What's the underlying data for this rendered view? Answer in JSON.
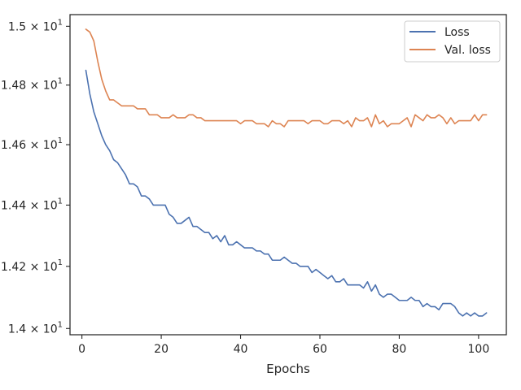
{
  "chart_data": {
    "type": "line",
    "title": "",
    "xlabel": "Epochs",
    "ylabel": "",
    "xlim": [
      -3,
      107
    ],
    "ylim": [
      13.98,
      15.04
    ],
    "y_scale": "log",
    "grid": false,
    "legend_position": "top-right",
    "x_ticks": [
      0,
      20,
      40,
      60,
      80,
      100
    ],
    "x_tick_labels": [
      "0",
      "20",
      "40",
      "60",
      "80",
      "100"
    ],
    "y_ticks": [
      {
        "value": 14.0,
        "mant": "1.4",
        "exp": "1"
      },
      {
        "value": 14.2,
        "mant": "1.42",
        "exp": "1"
      },
      {
        "value": 14.4,
        "mant": "1.44",
        "exp": "1"
      },
      {
        "value": 14.6,
        "mant": "1.46",
        "exp": "1"
      },
      {
        "value": 14.8,
        "mant": "1.48",
        "exp": "1"
      },
      {
        "value": 15.0,
        "mant": "1.5",
        "exp": "1"
      }
    ],
    "tick_times_sign": "×",
    "tick_base": "10",
    "x": [
      1,
      2,
      3,
      4,
      5,
      6,
      7,
      8,
      9,
      10,
      11,
      12,
      13,
      14,
      15,
      16,
      17,
      18,
      19,
      20,
      21,
      22,
      23,
      24,
      25,
      26,
      27,
      28,
      29,
      30,
      31,
      32,
      33,
      34,
      35,
      36,
      37,
      38,
      39,
      40,
      41,
      42,
      43,
      44,
      45,
      46,
      47,
      48,
      49,
      50,
      51,
      52,
      53,
      54,
      55,
      56,
      57,
      58,
      59,
      60,
      61,
      62,
      63,
      64,
      65,
      66,
      67,
      68,
      69,
      70,
      71,
      72,
      73,
      74,
      75,
      76,
      77,
      78,
      79,
      80,
      81,
      82,
      83,
      84,
      85,
      86,
      87,
      88,
      89,
      90,
      91,
      92,
      93,
      94,
      95,
      96,
      97,
      98,
      99,
      100,
      101,
      102
    ],
    "series": [
      {
        "name": "Loss",
        "color": "#4c72b0",
        "values": [
          14.85,
          14.77,
          14.71,
          14.67,
          14.63,
          14.6,
          14.58,
          14.55,
          14.54,
          14.52,
          14.5,
          14.47,
          14.47,
          14.46,
          14.43,
          14.43,
          14.42,
          14.4,
          14.4,
          14.4,
          14.4,
          14.37,
          14.36,
          14.34,
          14.34,
          14.35,
          14.36,
          14.33,
          14.33,
          14.32,
          14.31,
          14.31,
          14.29,
          14.3,
          14.28,
          14.3,
          14.27,
          14.27,
          14.28,
          14.27,
          14.26,
          14.26,
          14.26,
          14.25,
          14.25,
          14.24,
          14.24,
          14.22,
          14.22,
          14.22,
          14.23,
          14.22,
          14.21,
          14.21,
          14.2,
          14.2,
          14.2,
          14.18,
          14.19,
          14.18,
          14.17,
          14.16,
          14.17,
          14.15,
          14.15,
          14.16,
          14.14,
          14.14,
          14.14,
          14.14,
          14.13,
          14.15,
          14.12,
          14.14,
          14.11,
          14.1,
          14.11,
          14.11,
          14.1,
          14.09,
          14.09,
          14.09,
          14.1,
          14.09,
          14.09,
          14.07,
          14.08,
          14.07,
          14.07,
          14.06,
          14.08,
          14.08,
          14.08,
          14.07,
          14.05,
          14.04,
          14.05,
          14.04,
          14.05,
          14.04,
          14.04,
          14.05
        ]
      },
      {
        "name": "Val. loss",
        "color": "#dd8452",
        "values": [
          14.99,
          14.98,
          14.95,
          14.88,
          14.82,
          14.78,
          14.75,
          14.75,
          14.74,
          14.73,
          14.73,
          14.73,
          14.73,
          14.72,
          14.72,
          14.72,
          14.7,
          14.7,
          14.7,
          14.69,
          14.69,
          14.69,
          14.7,
          14.69,
          14.69,
          14.69,
          14.7,
          14.7,
          14.69,
          14.69,
          14.68,
          14.68,
          14.68,
          14.68,
          14.68,
          14.68,
          14.68,
          14.68,
          14.68,
          14.67,
          14.68,
          14.68,
          14.68,
          14.67,
          14.67,
          14.67,
          14.66,
          14.68,
          14.67,
          14.67,
          14.66,
          14.68,
          14.68,
          14.68,
          14.68,
          14.68,
          14.67,
          14.68,
          14.68,
          14.68,
          14.67,
          14.67,
          14.68,
          14.68,
          14.68,
          14.67,
          14.68,
          14.66,
          14.69,
          14.68,
          14.68,
          14.69,
          14.66,
          14.7,
          14.67,
          14.68,
          14.66,
          14.67,
          14.67,
          14.67,
          14.68,
          14.69,
          14.66,
          14.7,
          14.69,
          14.68,
          14.7,
          14.69,
          14.69,
          14.7,
          14.69,
          14.67,
          14.69,
          14.67,
          14.68,
          14.68,
          14.68,
          14.68,
          14.7,
          14.68,
          14.7,
          14.7
        ]
      }
    ],
    "axis_color": "#262626"
  }
}
